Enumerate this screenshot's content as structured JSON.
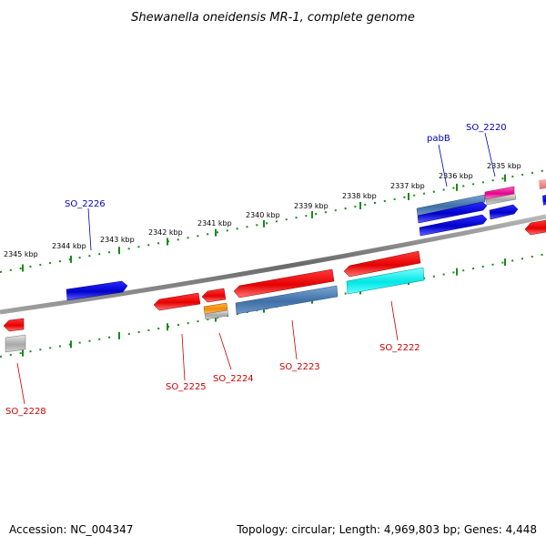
{
  "title": "Shewanella oneidensis MR-1, complete genome",
  "footer": {
    "accession": "Accession: NC_004347",
    "summary": "Topology: circular; Length: 4,969,803 bp; Genes: 4,448"
  },
  "colors": {
    "forward_label": "#0000bb",
    "reverse_label": "#cc0000",
    "backbone": "#7a7a7a",
    "ticks": "#1a8a1a"
  },
  "kbp_labels": [
    "2345 kbp",
    "2344 kbp",
    "2343 kbp",
    "2342 kbp",
    "2341 kbp",
    "2340 kbp",
    "2339 kbp",
    "2338 kbp",
    "2337 kbp",
    "2336 kbp",
    "2335 kbp"
  ],
  "gene_labels": {
    "forward": [
      "SO_2226",
      "pabB",
      "SO_2220"
    ],
    "reverse": [
      "SO_2228",
      "SO_2225",
      "SO_2224",
      "SO_2223",
      "SO_2222"
    ]
  }
}
